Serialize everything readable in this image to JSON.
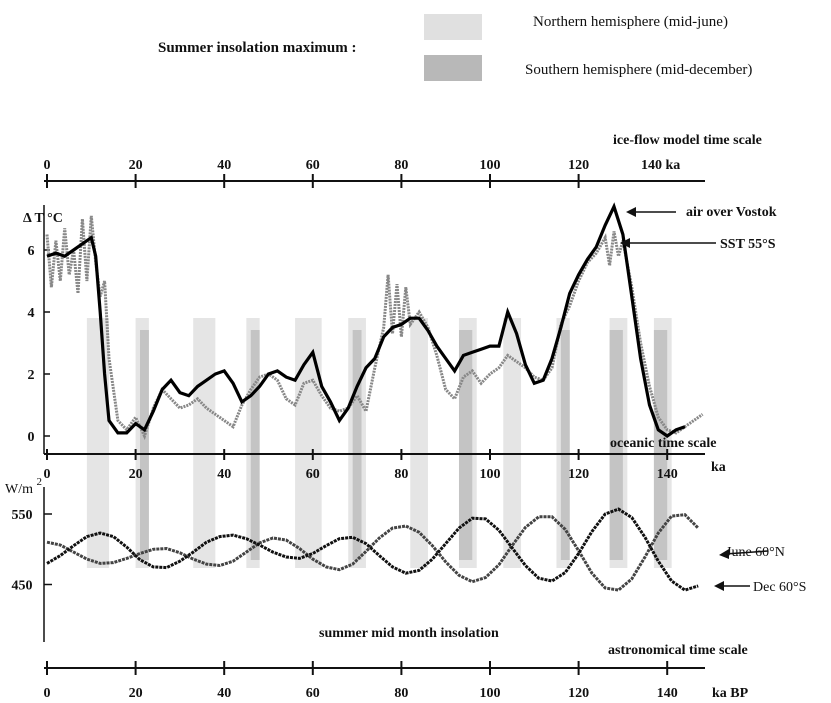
{
  "legend": {
    "title": "Summer insolation maximum :",
    "northern": "Northern hemisphere (mid-june)",
    "southern": "Southern hemisphere (mid-december)",
    "northern_color": "#e0e0e0",
    "southern_color": "#b8b8b8"
  },
  "top_axis": {
    "title": "ice-flow model time scale",
    "ticks": [
      0,
      20,
      40,
      60,
      80,
      100,
      120
    ],
    "end_label": "140 ka"
  },
  "upper_panel": {
    "y_title": "Δ T °C",
    "y_ticks": [
      0,
      2,
      4,
      6
    ],
    "ylim": [
      -0.5,
      7
    ],
    "x_axis_title": "oceanic time scale",
    "x_ticks": [
      0,
      20,
      40,
      60,
      80,
      100,
      120,
      140
    ],
    "x_unit": "ka",
    "annotation_air": "air over Vostok",
    "annotation_sst": "SST 55°S"
  },
  "lower_panel": {
    "y_title": "W/m²",
    "y_title_parts": {
      "base": "W/m",
      "exp": "2"
    },
    "y_ticks": [
      450,
      550
    ],
    "ylim": [
      420,
      580
    ],
    "caption": "summer mid month insolation",
    "annotation_june": "June 60°N",
    "annotation_dec": "Dec 60°S"
  },
  "bottom_axis": {
    "title": "astronomical time scale",
    "ticks": [
      0,
      20,
      40,
      60,
      80,
      100,
      120,
      140
    ],
    "unit": "ka BP"
  },
  "chart_data": {
    "type": "line",
    "xlim": [
      0,
      150
    ],
    "series": [
      {
        "name": "air over Vostok",
        "panel": "upper",
        "color": "#000000",
        "x": [
          0,
          2,
          4,
          6,
          8,
          10,
          11,
          12,
          13,
          14,
          16,
          18,
          20,
          22,
          24,
          26,
          28,
          30,
          32,
          34,
          36,
          38,
          40,
          42,
          44,
          46,
          48,
          50,
          52,
          54,
          56,
          58,
          60,
          62,
          64,
          66,
          68,
          70,
          72,
          74,
          76,
          78,
          80,
          82,
          84,
          86,
          88,
          90,
          92,
          94,
          96,
          98,
          100,
          102,
          104,
          106,
          108,
          110,
          112,
          114,
          116,
          118,
          120,
          122,
          124,
          126,
          128,
          130,
          132,
          134,
          136,
          138,
          140,
          142,
          144
        ],
        "y": [
          5.8,
          5.9,
          5.8,
          6.0,
          6.2,
          6.4,
          5.8,
          4.0,
          2.0,
          0.5,
          0.1,
          0.1,
          0.4,
          0.2,
          0.8,
          1.5,
          1.8,
          1.4,
          1.3,
          1.6,
          1.8,
          2.0,
          2.1,
          1.7,
          1.1,
          1.3,
          1.6,
          2.0,
          2.1,
          1.9,
          1.8,
          2.3,
          2.7,
          1.6,
          1.1,
          0.5,
          0.9,
          1.6,
          2.2,
          2.5,
          3.2,
          3.5,
          3.6,
          3.8,
          3.8,
          3.4,
          2.9,
          2.5,
          2.1,
          2.6,
          2.7,
          2.8,
          2.9,
          2.9,
          4.0,
          3.3,
          2.3,
          1.7,
          1.8,
          2.5,
          3.5,
          4.6,
          5.2,
          5.7,
          6.1,
          6.8,
          7.4,
          6.5,
          4.5,
          2.5,
          1.0,
          0.2,
          0.0,
          0.2,
          0.3
        ]
      },
      {
        "name": "SST 55°S",
        "panel": "upper",
        "color": "#777777",
        "x": [
          0,
          1,
          2,
          3,
          4,
          5,
          6,
          7,
          8,
          9,
          10,
          11,
          12,
          13,
          14,
          16,
          18,
          20,
          22,
          24,
          26,
          28,
          30,
          32,
          34,
          36,
          38,
          40,
          42,
          44,
          46,
          48,
          50,
          52,
          54,
          56,
          58,
          60,
          62,
          64,
          66,
          68,
          70,
          72,
          74,
          76,
          77,
          78,
          79,
          80,
          81,
          82,
          84,
          86,
          88,
          90,
          92,
          94,
          96,
          98,
          100,
          102,
          104,
          106,
          108,
          110,
          112,
          114,
          116,
          118,
          120,
          122,
          124,
          126,
          127,
          128,
          129,
          130,
          132,
          134,
          136,
          138,
          140,
          142,
          144,
          146,
          148
        ],
        "y": [
          6.5,
          4.8,
          6.3,
          5.0,
          6.7,
          5.2,
          6.0,
          4.6,
          7.0,
          5.0,
          7.1,
          5.6,
          4.5,
          5.0,
          2.5,
          0.5,
          0.2,
          0.6,
          0.0,
          0.9,
          1.5,
          1.2,
          0.9,
          1.0,
          1.2,
          0.9,
          0.7,
          0.5,
          0.3,
          1.0,
          1.5,
          1.9,
          2.0,
          1.8,
          1.2,
          1.0,
          1.7,
          1.8,
          1.3,
          0.9,
          0.8,
          0.9,
          1.3,
          0.8,
          2.2,
          3.5,
          5.2,
          3.3,
          4.9,
          3.2,
          4.8,
          3.6,
          4.0,
          3.5,
          2.6,
          1.5,
          1.2,
          1.9,
          2.1,
          1.7,
          2.0,
          2.2,
          2.6,
          2.4,
          2.2,
          1.9,
          1.8,
          2.2,
          3.6,
          4.2,
          5.0,
          5.6,
          5.9,
          6.4,
          5.5,
          6.6,
          5.8,
          6.3,
          4.8,
          3.0,
          1.6,
          0.6,
          0.2,
          0.1,
          0.3,
          0.5,
          0.7
        ]
      },
      {
        "name": "June 60°N",
        "panel": "lower",
        "color": "#444444",
        "x": [
          0,
          3,
          6,
          9,
          12,
          15,
          18,
          21,
          24,
          27,
          30,
          33,
          36,
          39,
          42,
          45,
          48,
          51,
          54,
          57,
          60,
          63,
          66,
          69,
          72,
          75,
          78,
          81,
          84,
          87,
          90,
          93,
          96,
          99,
          102,
          105,
          108,
          111,
          114,
          117,
          120,
          123,
          126,
          129,
          132,
          135,
          138,
          141,
          144,
          147
        ],
        "y": [
          510,
          506,
          496,
          486,
          480,
          481,
          487,
          494,
          500,
          501,
          495,
          486,
          479,
          477,
          483,
          496,
          509,
          516,
          513,
          501,
          486,
          475,
          471,
          479,
          497,
          516,
          530,
          533,
          524,
          505,
          482,
          463,
          454,
          460,
          478,
          505,
          531,
          546,
          546,
          528,
          498,
          466,
          445,
          442,
          458,
          489,
          523,
          547,
          549,
          530
        ]
      },
      {
        "name": "Dec 60°S",
        "panel": "lower",
        "color": "#111111",
        "x": [
          0,
          3,
          6,
          9,
          12,
          15,
          18,
          21,
          24,
          27,
          30,
          33,
          36,
          39,
          42,
          45,
          48,
          51,
          54,
          57,
          60,
          63,
          66,
          69,
          72,
          75,
          78,
          81,
          84,
          87,
          90,
          93,
          96,
          99,
          102,
          105,
          108,
          111,
          114,
          117,
          120,
          123,
          126,
          129,
          132,
          135,
          138,
          141,
          144,
          147
        ],
        "y": [
          480,
          491,
          505,
          518,
          523,
          518,
          503,
          485,
          475,
          474,
          483,
          496,
          510,
          518,
          520,
          515,
          506,
          496,
          489,
          487,
          494,
          505,
          515,
          517,
          508,
          491,
          475,
          466,
          470,
          486,
          508,
          530,
          544,
          543,
          527,
          502,
          477,
          459,
          455,
          467,
          494,
          525,
          550,
          557,
          545,
          517,
          483,
          455,
          442,
          448
        ]
      }
    ],
    "bands": {
      "northern": [
        [
          9,
          14
        ],
        [
          20,
          23
        ],
        [
          33,
          38
        ],
        [
          45,
          48
        ],
        [
          56,
          62
        ],
        [
          68,
          72
        ],
        [
          82,
          86
        ],
        [
          93,
          97
        ],
        [
          103,
          107
        ],
        [
          115,
          118
        ],
        [
          127,
          131
        ],
        [
          137,
          141
        ]
      ],
      "southern": [
        [
          21,
          23
        ],
        [
          46,
          48
        ],
        [
          69,
          71
        ],
        [
          93,
          96
        ],
        [
          116,
          118
        ],
        [
          127,
          130
        ],
        [
          137,
          140
        ]
      ]
    }
  }
}
